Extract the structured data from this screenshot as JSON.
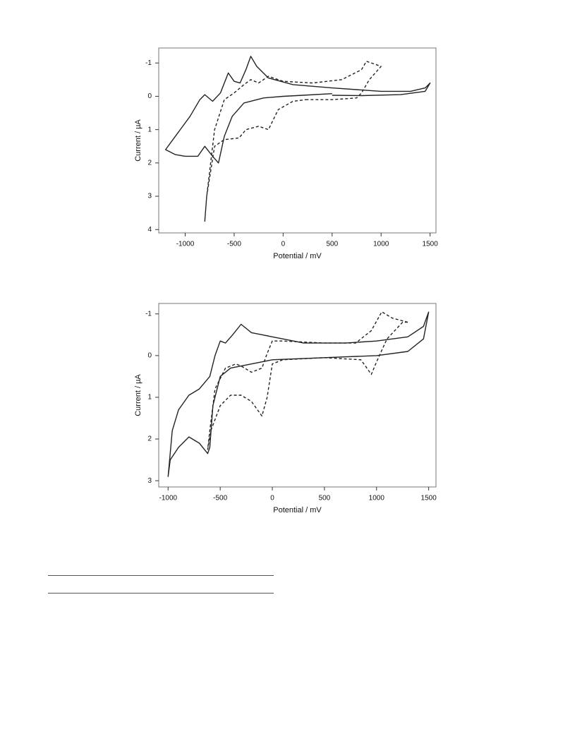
{
  "chart_data": [
    {
      "type": "line",
      "xlabel": "Potential / mV",
      "ylabel": "Current / µA",
      "xlim": [
        -1270,
        1560
      ],
      "ylim": [
        4.1,
        -1.45
      ],
      "xticks": [
        -1000,
        -500,
        0,
        500,
        1000,
        1500
      ],
      "yticks": [
        -1,
        0,
        1,
        2,
        3,
        4
      ],
      "series": [
        {
          "color": "#222222",
          "style": "solid",
          "x": [
            500,
            200,
            0,
            -200,
            -400,
            -520,
            -600,
            -660,
            -720,
            -800,
            -870,
            -1000,
            -1100,
            -1200,
            -1100,
            -950,
            -850,
            -800,
            -720,
            -640,
            -560,
            -500,
            -440,
            -380,
            -330,
            -270,
            -150,
            100,
            500,
            1000,
            1300,
            1450,
            1500,
            1450,
            1200,
            800,
            500
          ],
          "values": [
            -0.08,
            -0.03,
            0,
            0.05,
            0.2,
            0.6,
            1.2,
            2.0,
            1.8,
            1.5,
            1.8,
            1.8,
            1.75,
            1.6,
            1.2,
            0.6,
            0.1,
            -0.05,
            0.15,
            -0.1,
            -0.7,
            -0.45,
            -0.4,
            -0.8,
            -1.2,
            -0.9,
            -0.55,
            -0.35,
            -0.25,
            -0.15,
            -0.15,
            -0.25,
            -0.4,
            -0.15,
            -0.05,
            -0.02,
            -0.03
          ]
        },
        {
          "color": "#222222",
          "style": "dashed",
          "x": [
            230,
            500,
            750,
            800,
            880,
            1000,
            900,
            850,
            800,
            600,
            300,
            0,
            -150,
            -250,
            -330,
            -400,
            -500,
            -600,
            -700,
            -780,
            -800,
            -780,
            -700,
            -600,
            -450,
            -380,
            -250,
            -150,
            -50,
            100,
            230
          ],
          "values": [
            0.1,
            0.1,
            0.05,
            -0.1,
            -0.5,
            -0.9,
            -1.0,
            -1.05,
            -0.8,
            -0.5,
            -0.4,
            -0.45,
            -0.6,
            -0.4,
            -0.5,
            -0.35,
            -0.1,
            0.1,
            1.0,
            3.0,
            3.75,
            3.0,
            1.5,
            1.3,
            1.25,
            1.0,
            0.9,
            1.0,
            0.4,
            0.15,
            0.1
          ]
        }
      ]
    },
    {
      "type": "line",
      "xlabel": "Potential / mV",
      "ylabel": "Current / µA",
      "xlim": [
        -1090,
        1570
      ],
      "ylim": [
        3.15,
        -1.25
      ],
      "xticks": [
        -1000,
        -500,
        0,
        500,
        1000,
        1500
      ],
      "yticks": [
        -1,
        0,
        1,
        2,
        3
      ],
      "series": [
        {
          "color": "#222222",
          "style": "solid",
          "x": [
            1500,
            1450,
            1300,
            1000,
            700,
            300,
            100,
            0,
            -100,
            -200,
            -300,
            -380,
            -450,
            -500,
            -550,
            -600,
            -700,
            -800,
            -900,
            -960,
            -1000,
            -980,
            -900,
            -800,
            -700,
            -620,
            -600,
            -570,
            -500,
            -400,
            -200,
            0,
            500,
            1000,
            1300,
            1450,
            1500
          ],
          "values": [
            -1.05,
            -0.7,
            -0.45,
            -0.35,
            -0.3,
            -0.3,
            -0.4,
            -0.45,
            -0.5,
            -0.55,
            -0.75,
            -0.5,
            -0.3,
            -0.35,
            0,
            0.5,
            0.8,
            0.95,
            1.3,
            1.8,
            2.9,
            2.5,
            2.2,
            1.95,
            2.1,
            2.35,
            2.2,
            1.2,
            0.5,
            0.3,
            0.2,
            0.1,
            0.05,
            0,
            -0.1,
            -0.4,
            -1.05
          ]
        },
        {
          "color": "#222222",
          "style": "dashed",
          "x": [
            1300,
            1150,
            1050,
            950,
            800,
            500,
            100,
            0,
            -50,
            -100,
            -200,
            -300,
            -350,
            -450,
            -550,
            -600,
            -620,
            -590,
            -500,
            -400,
            -300,
            -200,
            -100,
            -50,
            0,
            100,
            500,
            850,
            950,
            1000,
            1100,
            1250,
            1300
          ],
          "values": [
            -0.8,
            -0.9,
            -1.05,
            -0.6,
            -0.3,
            -0.3,
            -0.35,
            -0.35,
            -0.05,
            0.3,
            0.4,
            0.25,
            0.2,
            0.3,
            0.8,
            1.8,
            2.25,
            1.8,
            1.2,
            0.95,
            0.95,
            1.1,
            1.45,
            1.0,
            0.2,
            0.1,
            0.05,
            0.1,
            0.45,
            0.15,
            -0.4,
            -0.8,
            -0.8
          ]
        }
      ]
    }
  ]
}
